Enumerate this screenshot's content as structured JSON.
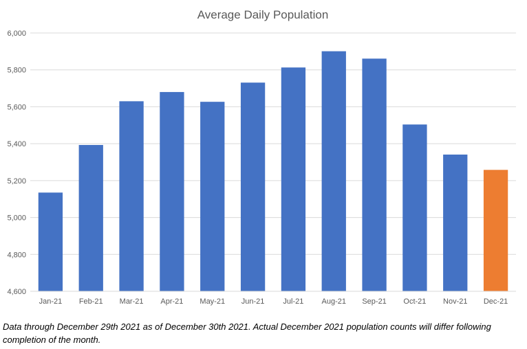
{
  "chart_data": {
    "type": "bar",
    "title": "Average Daily Population",
    "xlabel": "",
    "ylabel": "",
    "ylim": [
      4600,
      6000
    ],
    "yticks": [
      4600,
      4800,
      5000,
      5200,
      5400,
      5600,
      5800,
      6000
    ],
    "ytick_labels": [
      "4,600",
      "4,800",
      "5,000",
      "5,200",
      "5,400",
      "5,600",
      "5,800",
      "6,000"
    ],
    "grid": true,
    "legend": "none",
    "categories": [
      "Jan-21",
      "Feb-21",
      "Mar-21",
      "Apr-21",
      "May-21",
      "Jun-21",
      "Jul-21",
      "Aug-21",
      "Sep-21",
      "Oct-21",
      "Nov-21",
      "Dec-21"
    ],
    "values": [
      5135,
      5393,
      5630,
      5680,
      5627,
      5731,
      5813,
      5901,
      5861,
      5504,
      5341,
      5258
    ],
    "colors": {
      "primary": "#4472C4",
      "highlight": "#ED7D31",
      "grid": "#D9D9D9",
      "tick_text": "#595959",
      "title_text": "#595959"
    },
    "highlight_index": 11
  },
  "footnote": "Data through December 29th 2021 as of December 30th 2021. Actual December 2021 population counts will differ following completion of the month."
}
